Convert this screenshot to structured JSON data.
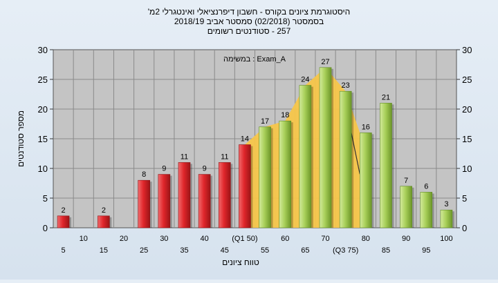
{
  "chart_data": {
    "type": "bar",
    "title_lines": [
      "היסטוגרמת ציונים בקורס - חשבון דיפרנציאלי ואינטגרלי 2מ'",
      "בסמסטר  (02/2018)  סמסטר אביב 2018/19",
      "257 - סטודנטים רשומים"
    ],
    "legend_text": "במשימה : Exam_A",
    "xlabel": "טווח ציונים",
    "ylabel": "מספר סטודנטים",
    "ylim": [
      0,
      30
    ],
    "yticks": [
      0,
      5,
      10,
      15,
      20,
      25,
      30
    ],
    "x_tick_labels": [
      {
        "label": "5",
        "row": 2
      },
      {
        "label": "10",
        "row": 1
      },
      {
        "label": "15",
        "row": 2
      },
      {
        "label": "20",
        "row": 1
      },
      {
        "label": "25",
        "row": 2
      },
      {
        "label": "30",
        "row": 1
      },
      {
        "label": "35",
        "row": 2
      },
      {
        "label": "40",
        "row": 1
      },
      {
        "label": "45",
        "row": 2
      },
      {
        "label": "(Q1 50)",
        "row": 1
      },
      {
        "label": "55",
        "row": 2
      },
      {
        "label": "60",
        "row": 1
      },
      {
        "label": "65",
        "row": 2
      },
      {
        "label": "70",
        "row": 1
      },
      {
        "label": "(Q3 75)",
        "row": 2
      },
      {
        "label": "80",
        "row": 1
      },
      {
        "label": "85",
        "row": 2
      },
      {
        "label": "90",
        "row": 1
      },
      {
        "label": "95",
        "row": 2
      },
      {
        "label": "100",
        "row": 1
      }
    ],
    "bins": [
      5,
      10,
      15,
      20,
      25,
      30,
      35,
      40,
      45,
      50,
      55,
      60,
      65,
      70,
      75,
      80,
      85,
      90,
      95,
      100
    ],
    "values": [
      2,
      0,
      2,
      0,
      8,
      9,
      11,
      9,
      11,
      14,
      17,
      18,
      24,
      27,
      23,
      16,
      21,
      7,
      6,
      3
    ],
    "labels": [
      "2",
      "",
      "2",
      "",
      "8",
      "9",
      "11",
      "9",
      "11",
      "14",
      "17",
      "18",
      "24",
      "27",
      "23",
      "16",
      "21",
      "7",
      "6",
      "3"
    ],
    "colors": {
      "red_bar": "#e0262b",
      "red_bar_dark": "#8f1214",
      "green_bar": "#a9d05a",
      "green_bar_dark": "#5f8a22",
      "quartile_area": "#f7c64a",
      "plot_bg": "#c4c4c4",
      "grid": "#8a8a8a"
    },
    "red_until_bin": 50,
    "quartile_range": [
      50,
      75
    ],
    "grid": true
  }
}
